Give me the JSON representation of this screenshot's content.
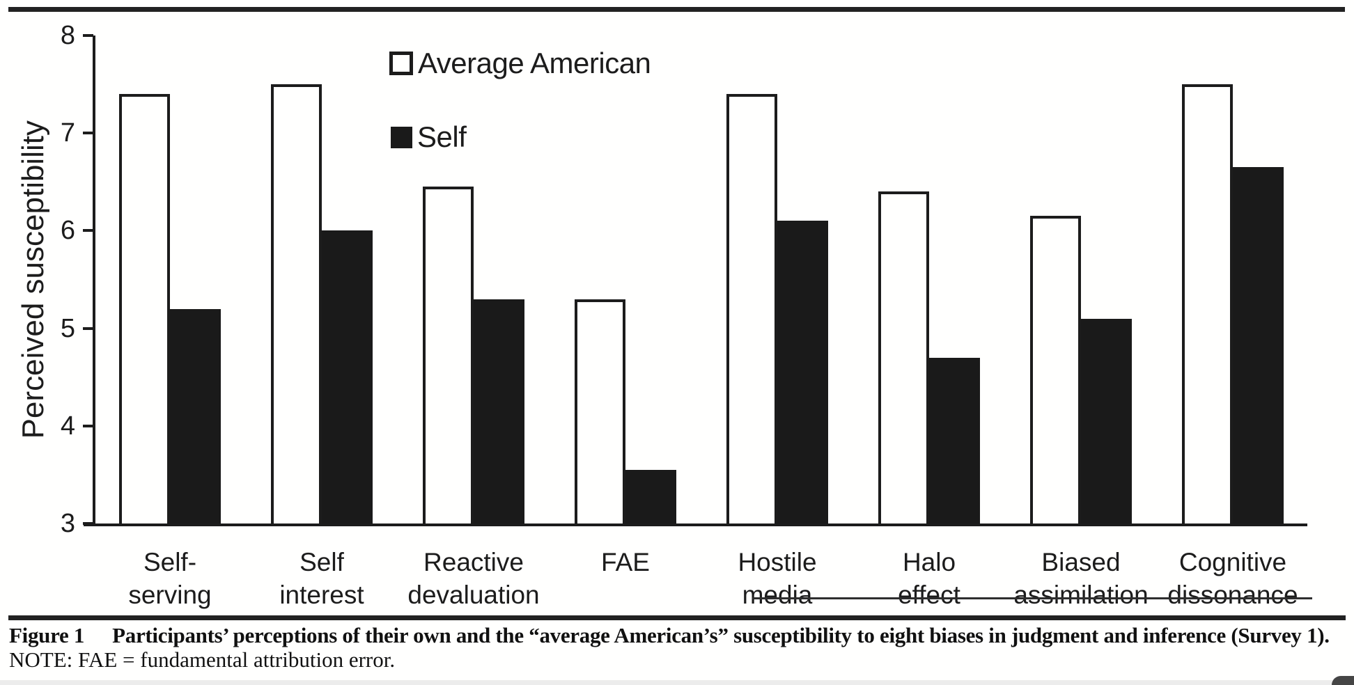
{
  "page": {
    "caption": {
      "label": "Figure 1",
      "text": "Participants’ perceptions of their own and the “average American’s” susceptibility to eight biases in judgment and inference (Survey 1)."
    },
    "note": "NOTE: FAE = fundamental attribution error.",
    "ink_color": "#1c1c1c",
    "background_color": "#ffffff"
  },
  "chart_data": {
    "type": "bar",
    "title": "",
    "xlabel": "",
    "ylabel": "Perceived susceptibility",
    "ylim": [
      3,
      8
    ],
    "yticks": [
      8,
      7,
      6,
      5,
      4,
      3
    ],
    "grid": false,
    "legend_position": "inside-top-left-of-plot",
    "categories": [
      "Self-serving",
      "Self interest",
      "Reactive devaluation",
      "FAE",
      "Hostile media",
      "Halo effect",
      "Biased assimilation",
      "Cognitive dissonance"
    ],
    "category_labels_two_line": [
      [
        "Self-",
        "serving"
      ],
      [
        "Self",
        "interest"
      ],
      [
        "Reactive",
        "devaluation"
      ],
      [
        "FAE"
      ],
      [
        "Hostile",
        "media"
      ],
      [
        "Halo",
        "effect"
      ],
      [
        "Biased",
        "assimilation"
      ],
      [
        "Cognitive",
        "dissonance"
      ]
    ],
    "series": [
      {
        "name": "Average American",
        "fill": "#ffffff",
        "values": [
          7.4,
          7.5,
          6.45,
          5.3,
          7.4,
          6.4,
          6.15,
          7.5
        ]
      },
      {
        "name": "Self",
        "fill": "#1a1a1a",
        "values": [
          5.2,
          6.0,
          5.3,
          3.55,
          6.1,
          4.7,
          5.1,
          6.65
        ]
      }
    ]
  }
}
